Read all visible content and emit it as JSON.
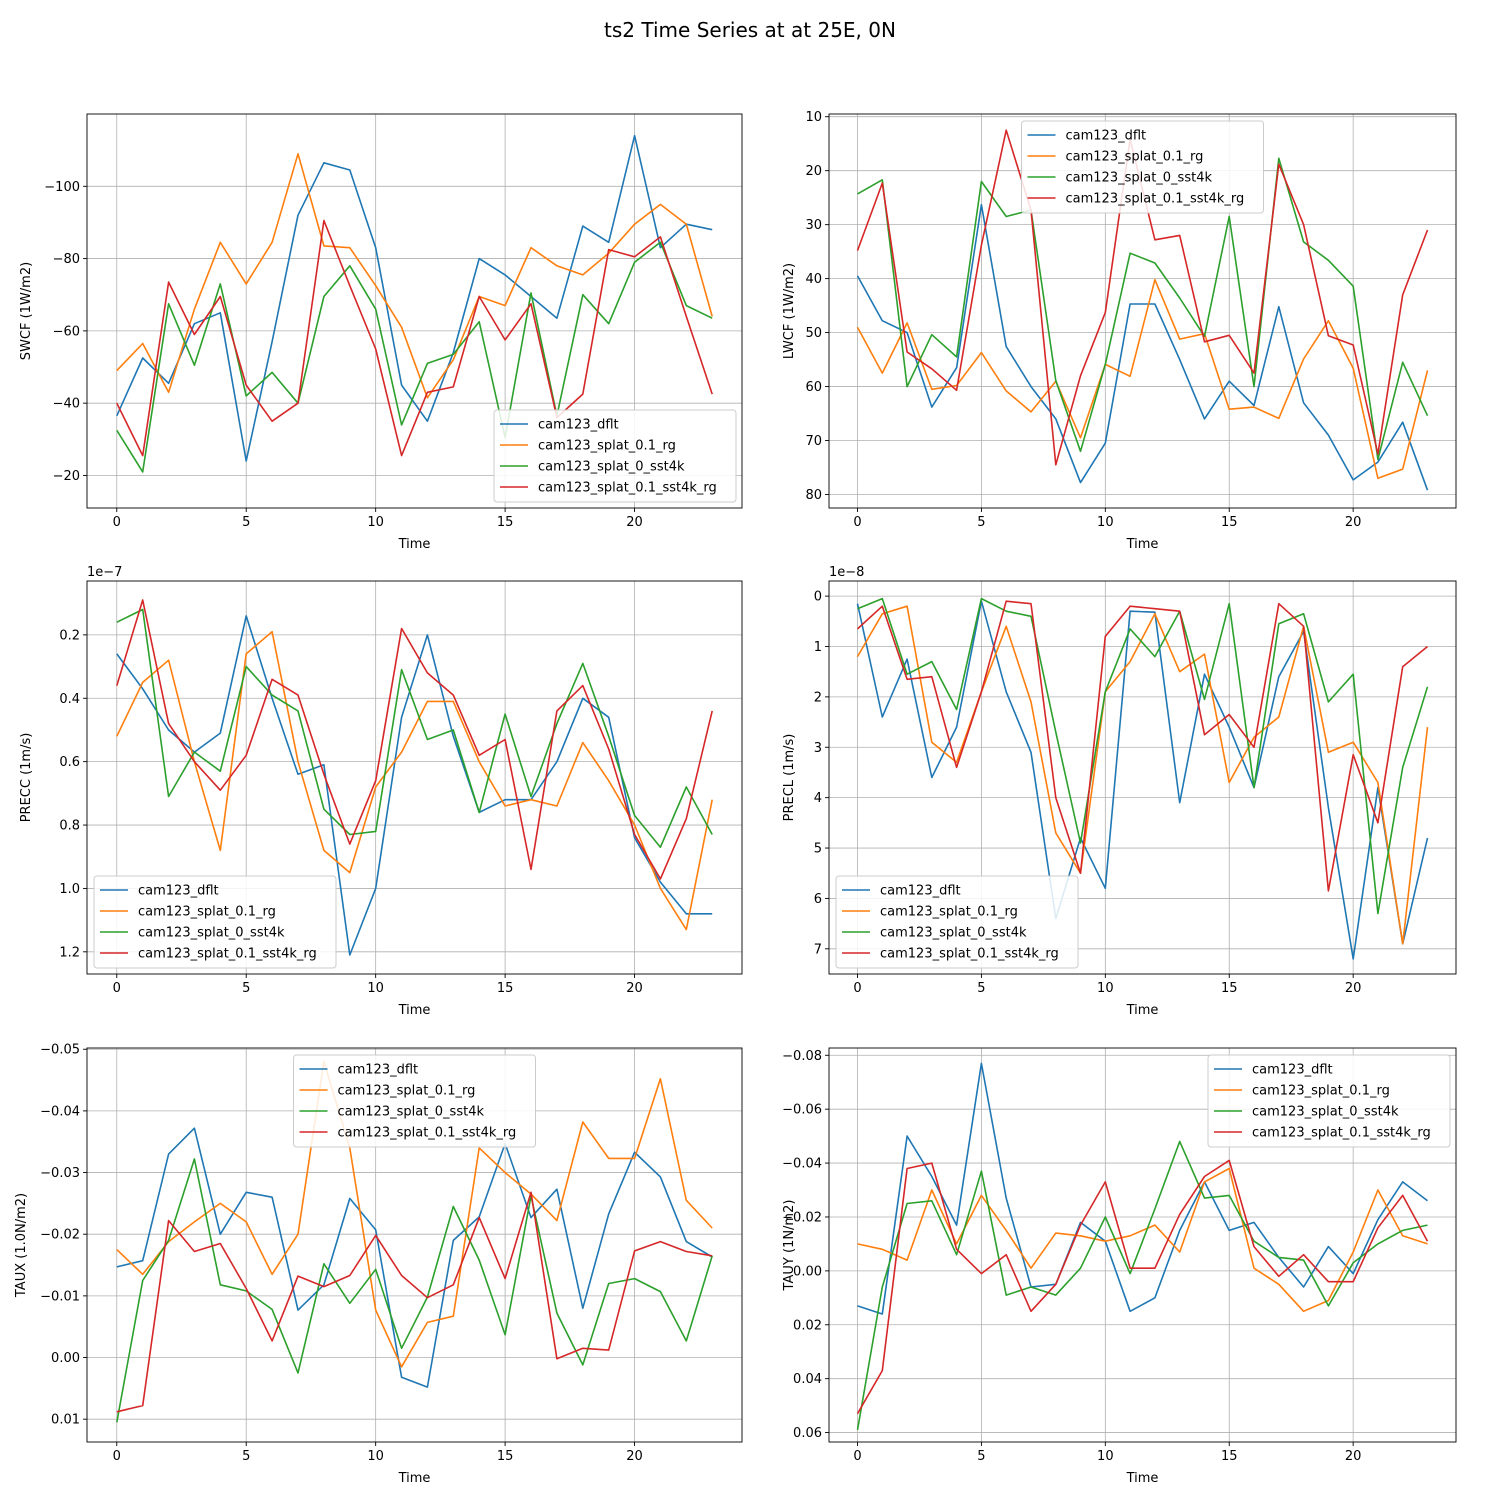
{
  "figure": {
    "title": "ts2 Time Series at at 25E, 0N"
  },
  "series_names": [
    "cam123_dflt",
    "cam123_splat_0.1_rg",
    "cam123_splat_0_sst4k",
    "cam123_splat_0.1_sst4k_rg"
  ],
  "colors": [
    "#1f77b4",
    "#ff7f0e",
    "#2ca02c",
    "#d62728"
  ],
  "chart_data": [
    {
      "type": "line",
      "title": "",
      "xlabel": "Time",
      "ylabel": "SWCF (1W/m2)",
      "x": [
        0,
        1,
        2,
        3,
        4,
        5,
        6,
        7,
        8,
        9,
        10,
        11,
        12,
        13,
        14,
        15,
        16,
        17,
        18,
        19,
        20,
        21,
        22,
        23
      ],
      "xlim": [
        -1.15,
        24.15
      ],
      "ylim": [
        -11,
        -120
      ],
      "xticks": [
        0,
        5,
        10,
        15,
        20
      ],
      "xtick_labels": [
        "0",
        "5",
        "10",
        "15",
        "20"
      ],
      "yticks": [
        -100,
        -80,
        -60,
        -40,
        -20
      ],
      "ytick_labels": [
        "−100",
        "−80",
        "−60",
        "−40",
        "−20"
      ],
      "exponent_label": "",
      "legend_position": "lower-right",
      "series": [
        {
          "name": "cam123_dflt",
          "values": [
            -36.5,
            -52.5,
            -45.5,
            -62,
            -65,
            -24,
            -57,
            -92,
            -106.5,
            -104.5,
            -83,
            -45,
            -35,
            -54,
            -80,
            -75.5,
            -69.5,
            -63.5,
            -89,
            -84.5,
            -114,
            -83,
            -89.5,
            -88
          ]
        },
        {
          "name": "cam123_splat_0.1_rg",
          "values": [
            -49,
            -56.5,
            -43,
            -66,
            -84.5,
            -73,
            -84.5,
            -109,
            -83.5,
            -83,
            -72.5,
            -61,
            -41.5,
            -52,
            -69.5,
            -67,
            -83,
            -78,
            -75.5,
            -81.5,
            -89.5,
            -95,
            -89.5,
            -64
          ]
        },
        {
          "name": "cam123_splat_0_sst4k",
          "values": [
            -32.5,
            -21,
            -67.5,
            -50.5,
            -73,
            -42,
            -48.5,
            -40,
            -69.5,
            -78,
            -66,
            -34,
            -51,
            -53.5,
            -62.5,
            -30.5,
            -70.5,
            -36.5,
            -70,
            -62,
            -79,
            -84.5,
            -67,
            -63.5
          ]
        },
        {
          "name": "cam123_splat_0.1_sst4k_rg",
          "values": [
            -40,
            -25.5,
            -73.5,
            -59,
            -69.5,
            -45,
            -35,
            -40,
            -90.5,
            -72.5,
            -55,
            -25.5,
            -43,
            -44.5,
            -69.5,
            -57.5,
            -67.5,
            -36,
            -42.5,
            -82.5,
            -80.5,
            -86,
            -64,
            -42.5
          ]
        }
      ]
    },
    {
      "type": "line",
      "title": "",
      "xlabel": "Time",
      "ylabel": "LWCF (1W/m2)",
      "x": [
        0,
        1,
        2,
        3,
        4,
        5,
        6,
        7,
        8,
        9,
        10,
        11,
        12,
        13,
        14,
        15,
        16,
        17,
        18,
        19,
        20,
        21,
        22,
        23
      ],
      "xlim": [
        -1.15,
        24.15
      ],
      "ylim": [
        82.5,
        9.5
      ],
      "xticks": [
        0,
        5,
        10,
        15,
        20
      ],
      "xtick_labels": [
        "0",
        "5",
        "10",
        "15",
        "20"
      ],
      "yticks": [
        10,
        20,
        30,
        40,
        50,
        60,
        70,
        80
      ],
      "ytick_labels": [
        "10",
        "20",
        "30",
        "40",
        "50",
        "60",
        "70",
        "80"
      ],
      "exponent_label": "",
      "legend_position": "top-center",
      "series": [
        {
          "name": "cam123_dflt",
          "values": [
            39.5,
            47.8,
            50,
            63.8,
            56.5,
            26.3,
            52.6,
            60,
            66,
            77.8,
            70.5,
            44.7,
            44.7,
            55,
            66,
            59,
            63.5,
            45.2,
            63,
            69,
            77.3,
            74,
            66.6,
            79.2
          ]
        },
        {
          "name": "cam123_splat_0.1_rg",
          "values": [
            49,
            57.5,
            48.2,
            60.5,
            59.8,
            53.7,
            60.8,
            64.7,
            59,
            69.5,
            55.9,
            58.1,
            40.2,
            51.2,
            50.2,
            64.2,
            63.8,
            65.9,
            54.9,
            47.8,
            56.6,
            77,
            75.3,
            57
          ]
        },
        {
          "name": "cam123_splat_0_sst4k",
          "values": [
            24.3,
            21.7,
            60,
            50.4,
            54.5,
            22,
            28.5,
            27.3,
            58.9,
            72,
            55.9,
            35.3,
            37.1,
            43.6,
            50.7,
            28.5,
            60,
            17.7,
            33.2,
            36.6,
            41.4,
            73.5,
            55.5,
            65.4
          ]
        },
        {
          "name": "cam123_splat_0.1_sst4k_rg",
          "values": [
            34.8,
            22.3,
            53.6,
            56.7,
            60.7,
            33.8,
            12.5,
            27.3,
            74.5,
            58,
            46.3,
            14.2,
            32.8,
            32,
            51.7,
            50.5,
            57.5,
            18.8,
            30,
            50.6,
            52.3,
            72.5,
            43,
            31
          ]
        }
      ]
    },
    {
      "type": "line",
      "title": "",
      "xlabel": "Time",
      "ylabel": "PRECC (1m/s)",
      "x": [
        0,
        1,
        2,
        3,
        4,
        5,
        6,
        7,
        8,
        9,
        10,
        11,
        12,
        13,
        14,
        15,
        16,
        17,
        18,
        19,
        20,
        21,
        22,
        23
      ],
      "xlim": [
        -1.15,
        24.15
      ],
      "ylim": [
        1.27,
        0.03
      ],
      "xticks": [
        0,
        5,
        10,
        15,
        20
      ],
      "xtick_labels": [
        "0",
        "5",
        "10",
        "15",
        "20"
      ],
      "yticks": [
        0.2,
        0.4,
        0.6,
        0.8,
        1.0,
        1.2
      ],
      "ytick_labels": [
        "0.2",
        "0.4",
        "0.6",
        "0.8",
        "1.0",
        "1.2"
      ],
      "exponent_label": "1e−7",
      "legend_position": "lower-left",
      "series": [
        {
          "name": "cam123_dflt",
          "values": [
            0.26,
            0.37,
            0.5,
            0.57,
            0.51,
            0.14,
            0.4,
            0.64,
            0.61,
            1.21,
            1.0,
            0.46,
            0.2,
            0.52,
            0.76,
            0.72,
            0.72,
            0.6,
            0.4,
            0.46,
            0.84,
            0.98,
            1.08,
            1.08
          ]
        },
        {
          "name": "cam123_splat_0.1_rg",
          "values": [
            0.52,
            0.35,
            0.28,
            0.6,
            0.88,
            0.26,
            0.19,
            0.6,
            0.88,
            0.95,
            0.68,
            0.57,
            0.41,
            0.41,
            0.6,
            0.74,
            0.72,
            0.74,
            0.54,
            0.66,
            0.8,
            1.0,
            1.13,
            0.72
          ]
        },
        {
          "name": "cam123_splat_0_sst4k",
          "values": [
            0.16,
            0.12,
            0.71,
            0.57,
            0.63,
            0.3,
            0.39,
            0.44,
            0.75,
            0.83,
            0.82,
            0.31,
            0.53,
            0.5,
            0.76,
            0.45,
            0.71,
            0.48,
            0.29,
            0.52,
            0.77,
            0.87,
            0.68,
            0.83
          ]
        },
        {
          "name": "cam123_splat_0.1_sst4k_rg",
          "values": [
            0.36,
            0.09,
            0.48,
            0.6,
            0.69,
            0.58,
            0.34,
            0.39,
            0.64,
            0.86,
            0.66,
            0.18,
            0.32,
            0.39,
            0.58,
            0.53,
            0.94,
            0.44,
            0.36,
            0.56,
            0.83,
            0.97,
            0.78,
            0.44
          ]
        }
      ]
    },
    {
      "type": "line",
      "title": "",
      "xlabel": "Time",
      "ylabel": "PRECL (1m/s)",
      "x": [
        0,
        1,
        2,
        3,
        4,
        5,
        6,
        7,
        8,
        9,
        10,
        11,
        12,
        13,
        14,
        15,
        16,
        17,
        18,
        19,
        20,
        21,
        22,
        23
      ],
      "xlim": [
        -1.15,
        24.15
      ],
      "ylim": [
        7.5,
        -0.3
      ],
      "xticks": [
        0,
        5,
        10,
        15,
        20
      ],
      "xtick_labels": [
        "0",
        "5",
        "10",
        "15",
        "20"
      ],
      "yticks": [
        0,
        1,
        2,
        3,
        4,
        5,
        6,
        7
      ],
      "ytick_labels": [
        "0",
        "1",
        "2",
        "3",
        "4",
        "5",
        "6",
        "7"
      ],
      "exponent_label": "1e−8",
      "legend_position": "lower-left",
      "series": [
        {
          "name": "cam123_dflt",
          "values": [
            0.15,
            2.4,
            1.25,
            3.6,
            2.6,
            0.1,
            1.9,
            3.1,
            6.4,
            4.8,
            5.8,
            0.3,
            0.32,
            4.1,
            1.55,
            2.6,
            3.8,
            1.6,
            0.7,
            4.2,
            7.2,
            3.8,
            6.9,
            4.8
          ]
        },
        {
          "name": "cam123_splat_0.1_rg",
          "values": [
            1.2,
            0.35,
            0.2,
            2.9,
            3.3,
            1.9,
            0.6,
            2.1,
            4.7,
            5.5,
            1.9,
            1.3,
            0.35,
            1.5,
            1.15,
            3.7,
            2.8,
            2.4,
            0.6,
            3.1,
            2.9,
            3.7,
            6.9,
            2.6
          ]
        },
        {
          "name": "cam123_splat_0_sst4k",
          "values": [
            0.25,
            0.05,
            1.55,
            1.3,
            2.25,
            0.05,
            0.3,
            0.4,
            2.7,
            4.9,
            1.9,
            0.65,
            1.2,
            0.3,
            2.05,
            0.15,
            3.8,
            0.55,
            0.35,
            2.1,
            1.55,
            6.3,
            3.4,
            1.8
          ]
        },
        {
          "name": "cam123_splat_0.1_sst4k_rg",
          "values": [
            0.65,
            0.2,
            1.65,
            1.6,
            3.4,
            1.9,
            0.1,
            0.15,
            4.0,
            5.5,
            0.8,
            0.2,
            0.25,
            0.3,
            2.75,
            2.35,
            3.0,
            0.15,
            0.6,
            5.85,
            3.15,
            4.5,
            1.4,
            1.0
          ]
        }
      ]
    },
    {
      "type": "line",
      "title": "",
      "xlabel": "Time",
      "ylabel": "TAUX (1.0N/m2)",
      "x": [
        0,
        1,
        2,
        3,
        4,
        5,
        6,
        7,
        8,
        9,
        10,
        11,
        12,
        13,
        14,
        15,
        16,
        17,
        18,
        19,
        20,
        21,
        22,
        23
      ],
      "xlim": [
        -1.15,
        24.15
      ],
      "ylim": [
        0.0137,
        -0.0502
      ],
      "xticks": [
        0,
        5,
        10,
        15,
        20
      ],
      "xtick_labels": [
        "0",
        "5",
        "10",
        "15",
        "20"
      ],
      "yticks": [
        -0.05,
        -0.04,
        -0.03,
        -0.02,
        -0.01,
        0.0,
        0.01
      ],
      "ytick_labels": [
        "−0.05",
        "−0.04",
        "−0.03",
        "−0.02",
        "−0.01",
        "0.00",
        "0.01"
      ],
      "exponent_label": "",
      "legend_position": "top-center",
      "series": [
        {
          "name": "cam123_dflt",
          "values": [
            -0.0147,
            -0.0157,
            -0.033,
            -0.0372,
            -0.02,
            -0.0268,
            -0.026,
            -0.0077,
            -0.0118,
            -0.0258,
            -0.0207,
            0.0032,
            0.0048,
            -0.019,
            -0.0228,
            -0.0347,
            -0.0227,
            -0.0273,
            -0.008,
            -0.0233,
            -0.0333,
            -0.0293,
            -0.0188,
            -0.0163
          ]
        },
        {
          "name": "cam123_splat_0.1_rg",
          "values": [
            -0.0175,
            -0.0135,
            -0.0188,
            -0.022,
            -0.025,
            -0.022,
            -0.0135,
            -0.02,
            -0.048,
            -0.034,
            -0.0077,
            0.0015,
            -0.0057,
            -0.0067,
            -0.034,
            -0.03,
            -0.0265,
            -0.0222,
            -0.0382,
            -0.0323,
            -0.0323,
            -0.0452,
            -0.0255,
            -0.021
          ]
        },
        {
          "name": "cam123_splat_0_sst4k",
          "values": [
            0.0105,
            -0.0125,
            -0.019,
            -0.0322,
            -0.0118,
            -0.0108,
            -0.0078,
            0.0025,
            -0.0152,
            -0.0088,
            -0.0143,
            -0.0015,
            -0.0098,
            -0.0245,
            -0.0158,
            -0.0037,
            -0.0262,
            -0.0072,
            0.0012,
            -0.012,
            -0.0128,
            -0.0107,
            -0.0027,
            -0.0165
          ]
        },
        {
          "name": "cam123_splat_0.1_sst4k_rg",
          "values": [
            0.0088,
            0.0078,
            -0.0222,
            -0.0172,
            -0.0185,
            -0.0112,
            -0.0027,
            -0.0132,
            -0.0115,
            -0.0133,
            -0.0198,
            -0.0133,
            -0.0097,
            -0.0118,
            -0.0227,
            -0.0128,
            -0.0268,
            0.0002,
            -0.0015,
            -0.0012,
            -0.0173,
            -0.0188,
            -0.0172,
            -0.0165
          ]
        }
      ]
    },
    {
      "type": "line",
      "title": "",
      "xlabel": "Time",
      "ylabel": "TAUY (1N/m2)",
      "x": [
        0,
        1,
        2,
        3,
        4,
        5,
        6,
        7,
        8,
        9,
        10,
        11,
        12,
        13,
        14,
        15,
        16,
        17,
        18,
        19,
        20,
        21,
        22,
        23
      ],
      "xlim": [
        -1.15,
        24.15
      ],
      "ylim": [
        0.0635,
        -0.0827
      ],
      "xticks": [
        0,
        5,
        10,
        15,
        20
      ],
      "xtick_labels": [
        "0",
        "5",
        "10",
        "15",
        "20"
      ],
      "yticks": [
        -0.08,
        -0.06,
        -0.04,
        -0.02,
        0.0,
        0.02,
        0.04,
        0.06
      ],
      "ytick_labels": [
        "−0.08",
        "−0.06",
        "−0.04",
        "−0.02",
        "0.00",
        "0.02",
        "0.04",
        "0.06"
      ],
      "exponent_label": "",
      "legend_position": "top-right",
      "series": [
        {
          "name": "cam123_dflt",
          "values": [
            0.013,
            0.016,
            -0.05,
            -0.035,
            -0.017,
            -0.077,
            -0.027,
            0.006,
            0.005,
            -0.018,
            -0.011,
            0.015,
            0.01,
            -0.015,
            -0.033,
            -0.015,
            -0.018,
            -0.005,
            0.006,
            -0.009,
            0.001,
            -0.019,
            -0.033,
            -0.026
          ]
        },
        {
          "name": "cam123_splat_0.1_rg",
          "values": [
            -0.01,
            -0.008,
            -0.004,
            -0.03,
            -0.01,
            -0.028,
            -0.015,
            -0.001,
            -0.014,
            -0.013,
            -0.011,
            -0.013,
            -0.017,
            -0.007,
            -0.033,
            -0.038,
            -0.001,
            0.005,
            0.015,
            0.011,
            -0.007,
            -0.03,
            -0.013,
            -0.01
          ]
        },
        {
          "name": "cam123_splat_0_sst4k",
          "values": [
            0.059,
            0.006,
            -0.025,
            -0.026,
            -0.006,
            -0.037,
            0.009,
            0.006,
            0.009,
            -0.001,
            -0.02,
            0.001,
            -0.023,
            -0.048,
            -0.027,
            -0.028,
            -0.011,
            -0.005,
            -0.004,
            0.013,
            -0.003,
            -0.01,
            -0.015,
            -0.017
          ]
        },
        {
          "name": "cam123_splat_0.1_sst4k_rg",
          "values": [
            0.053,
            0.037,
            -0.038,
            -0.04,
            -0.008,
            0.001,
            -0.006,
            0.015,
            0.005,
            -0.017,
            -0.033,
            -0.001,
            -0.001,
            -0.021,
            -0.035,
            -0.041,
            -0.009,
            0.002,
            -0.006,
            0.004,
            0.004,
            -0.016,
            -0.028,
            -0.011
          ]
        }
      ]
    }
  ]
}
